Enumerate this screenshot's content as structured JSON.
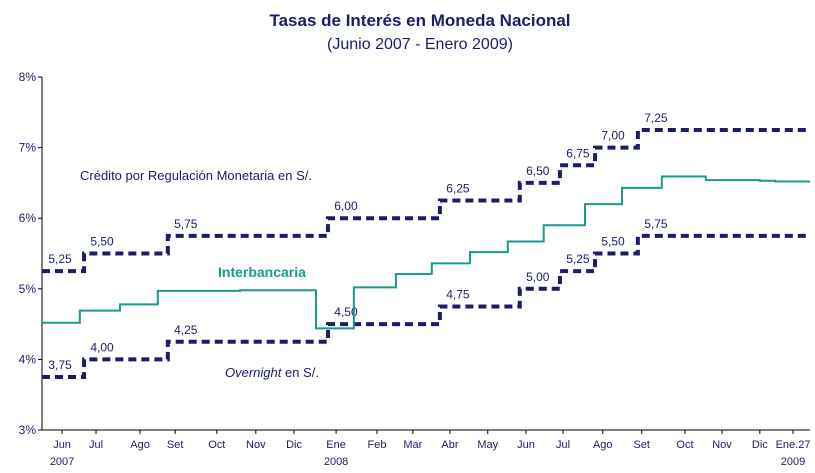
{
  "chart_data": {
    "type": "line",
    "step": true,
    "title": "Tasas de Interés en Moneda Nacional",
    "subtitle": "(Junio 2007 - Enero 2009)",
    "xlim": [
      0,
      19.9
    ],
    "xticks": [
      {
        "value": 0.52,
        "label": "Jun"
      },
      {
        "value": 1.4,
        "label": "Jul"
      },
      {
        "value": 2.54,
        "label": "Ago"
      },
      {
        "value": 3.45,
        "label": "Set"
      },
      {
        "value": 4.53,
        "label": "Oct"
      },
      {
        "value": 5.54,
        "label": "Nov"
      },
      {
        "value": 6.53,
        "label": "Dic"
      },
      {
        "value": 7.62,
        "label": "Ene"
      },
      {
        "value": 8.68,
        "label": "Feb"
      },
      {
        "value": 9.61,
        "label": "Mar"
      },
      {
        "value": 10.57,
        "label": "Abr"
      },
      {
        "value": 11.55,
        "label": "May"
      },
      {
        "value": 12.54,
        "label": "Jun"
      },
      {
        "value": 13.5,
        "label": "Jul"
      },
      {
        "value": 14.53,
        "label": "Ago"
      },
      {
        "value": 15.54,
        "label": "Set"
      },
      {
        "value": 16.66,
        "label": "Oct"
      },
      {
        "value": 17.62,
        "label": "Nov"
      },
      {
        "value": 18.6,
        "label": "Dic"
      },
      {
        "value": 19.46,
        "label": "Ene.27"
      }
    ],
    "year_labels": [
      {
        "value": 0.52,
        "label": "2007"
      },
      {
        "value": 7.62,
        "label": "2008"
      },
      {
        "value": 19.46,
        "label": "2009"
      }
    ],
    "ylim": [
      3,
      8
    ],
    "yticks": [
      {
        "value": 3,
        "label": "3%"
      },
      {
        "value": 4,
        "label": "4%"
      },
      {
        "value": 5,
        "label": "5%"
      },
      {
        "value": 6,
        "label": "6%"
      },
      {
        "value": 7,
        "label": "7%"
      },
      {
        "value": 8,
        "label": "8%"
      }
    ],
    "annotations": {
      "credito": "Crédito por Regulación Monetaria en S/.",
      "interbancaria": "Interbancaria",
      "overnight": "Overnight",
      "overnight_rest": " en S/."
    },
    "series": [
      {
        "name": "Crédito por Regulación Monetaria",
        "color": "#1c1c6e",
        "dashed": true,
        "x": [
          0,
          1.09,
          3.26,
          7.41,
          10.31,
          12.38,
          13.42,
          14.33,
          15.44
        ],
        "values": [
          5.25,
          5.5,
          5.75,
          6.0,
          6.25,
          6.5,
          6.75,
          7.0,
          7.25
        ],
        "value_labels": [
          "5,25",
          "5,50",
          "5,75",
          "6,00",
          "6,25",
          "6,50",
          "6,75",
          "7,00",
          "7,25"
        ]
      },
      {
        "name": "Overnight",
        "color": "#1c1c6e",
        "dashed": true,
        "x": [
          0,
          1.09,
          3.26,
          7.41,
          10.31,
          12.38,
          13.42,
          14.33,
          15.44
        ],
        "values": [
          3.75,
          4.0,
          4.25,
          4.5,
          4.75,
          5.0,
          5.25,
          5.5,
          5.75
        ],
        "value_labels": [
          "3,75",
          "4,00",
          "4,25",
          "4,50",
          "4,75",
          "5,00",
          "5,25",
          "5,50",
          "5,75"
        ]
      },
      {
        "name": "Interbancaria",
        "color": "#1a9a8a",
        "dashed": false,
        "x": [
          0,
          0.98,
          2.02,
          3.0,
          5.13,
          7.1,
          8.08,
          9.17,
          10.1,
          11.09,
          12.07,
          13.0,
          14.07,
          15.03,
          16.06,
          17.2,
          18.6,
          19.0
        ],
        "values": [
          4.52,
          4.69,
          4.78,
          4.97,
          4.98,
          4.44,
          5.02,
          5.21,
          5.36,
          5.52,
          5.67,
          5.9,
          6.2,
          6.43,
          6.59,
          6.54,
          6.53,
          6.52
        ]
      }
    ]
  }
}
